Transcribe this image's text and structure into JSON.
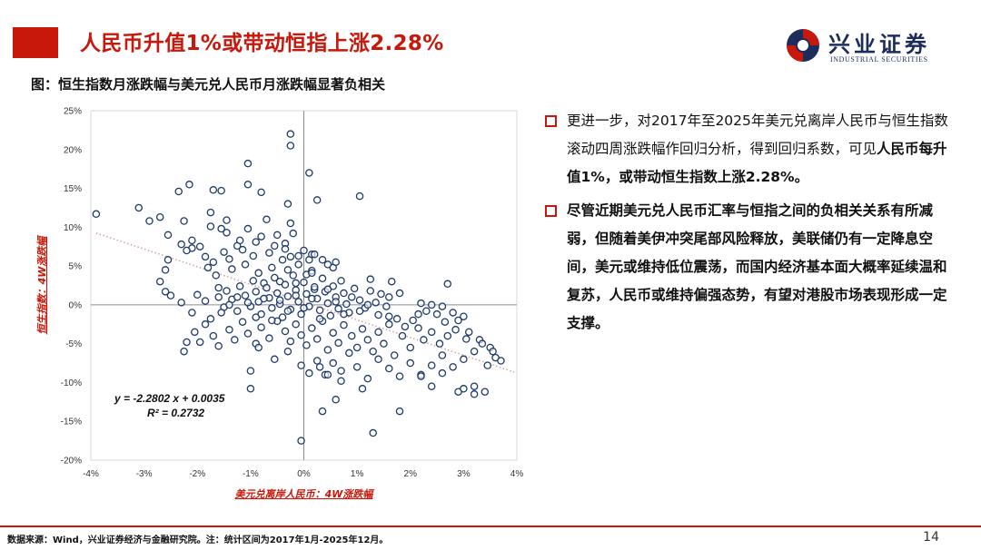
{
  "header": {
    "title": "人民币升值1%或带动恒指上涨2.28%"
  },
  "logo": {
    "cn": "兴业证券",
    "en": "INDUSTRIAL SECURITIES",
    "icon": "industrial-securities-logo"
  },
  "figure": {
    "caption": "图：恒生指数月涨跌幅与美元兑人民币月涨跌幅显著负相关"
  },
  "bullets": [
    {
      "parts": [
        {
          "text": "更进一步，对2017年至2025年美元兑离岸人民币与恒生指数滚动四周涨跌幅作回归分析，得到回归系数，可见",
          "bold": false
        },
        {
          "text": "人民币每升值1%，或带动恒生指数上涨2.28%。",
          "bold": true
        }
      ]
    },
    {
      "parts": [
        {
          "text": "尽管近期美元兑人民币汇率与恒指之间的负相关关系有所减弱，但随着美伊冲突尾部风险释放，美联储仍有一定降息空间，美元或维持低位震荡，而国内经济基本面大概率延续温和复苏，人民币或维持偏强态势，有望对港股市场表现形成一定支撑。",
          "bold": true
        }
      ]
    }
  ],
  "footer": {
    "source": "数据来源：Wind，兴业证券经济与金融研究院。注：统计区间为2017年1月-2025年12月。",
    "page": "14"
  },
  "colors": {
    "accent": "#c8180b",
    "marker": "#1f3a6e",
    "trend": "#d9a59c"
  },
  "chart_data": {
    "type": "scatter",
    "xlabel": "美元兑离岸人民币：4W涨跌幅",
    "ylabel": "恒生指数：4W涨跌幅",
    "xlim": [
      -0.04,
      0.04
    ],
    "ylim": [
      -0.2,
      0.25
    ],
    "x_ticks": [
      -0.04,
      -0.03,
      -0.02,
      -0.01,
      0,
      0.01,
      0.02,
      0.03,
      0.04
    ],
    "x_tick_labels": [
      "-4%",
      "-3%",
      "-2%",
      "-1%",
      "0%",
      "1%",
      "2%",
      "3%",
      "4%"
    ],
    "y_ticks": [
      -0.2,
      -0.15,
      -0.1,
      -0.05,
      0,
      0.05,
      0.1,
      0.15,
      0.2,
      0.25
    ],
    "y_tick_labels": [
      "-20%",
      "-15%",
      "-10%",
      "-5%",
      "0%",
      "5%",
      "10%",
      "15%",
      "20%",
      "25%"
    ],
    "trendline": {
      "slope": -2.2802,
      "intercept": 0.0035,
      "style": "dotted"
    },
    "equation": "y = -2.2802 x + 0.0035",
    "r2": "R² = 0.2732",
    "points": [
      [
        -0.039,
        0.117
      ],
      [
        -0.031,
        0.125
      ],
      [
        -0.029,
        0.108
      ],
      [
        -0.027,
        0.113
      ],
      [
        -0.0255,
        0.09
      ],
      [
        -0.0235,
        0.146
      ],
      [
        -0.0225,
        0.108
      ],
      [
        -0.0215,
        0.155
      ],
      [
        -0.021,
        0.073
      ],
      [
        -0.0175,
        0.119
      ],
      [
        -0.017,
        0.148
      ],
      [
        -0.0155,
        0.147
      ],
      [
        -0.0145,
        0.109
      ],
      [
        -0.0105,
        0.155
      ],
      [
        -0.0105,
        0.182
      ],
      [
        -0.008,
        0.145
      ],
      [
        -0.007,
        0.11
      ],
      [
        -0.003,
        0.13
      ],
      [
        -0.0025,
        0.105
      ],
      [
        -0.002,
        0.092
      ],
      [
        -0.0255,
        0.058
      ],
      [
        -0.026,
        0.045
      ],
      [
        -0.027,
        0.03
      ],
      [
        -0.026,
        0.017
      ],
      [
        -0.025,
        0.012
      ],
      [
        -0.023,
        0.078
      ],
      [
        -0.022,
        0.07
      ],
      [
        -0.021,
        0.083
      ],
      [
        -0.0195,
        0.075
      ],
      [
        -0.0185,
        0.062
      ],
      [
        -0.018,
        0.048
      ],
      [
        -0.017,
        0.055
      ],
      [
        -0.0165,
        0.038
      ],
      [
        -0.016,
        0.022
      ],
      [
        -0.015,
        0.068
      ],
      [
        -0.014,
        0.059
      ],
      [
        -0.0135,
        0.046
      ],
      [
        -0.0125,
        0.076
      ],
      [
        -0.0115,
        0.071
      ],
      [
        -0.011,
        0.052
      ],
      [
        -0.0095,
        0.063
      ],
      [
        -0.0085,
        0.041
      ],
      [
        -0.008,
        0.088
      ],
      [
        -0.0075,
        0.028
      ],
      [
        -0.0065,
        0.067
      ],
      [
        -0.006,
        0.048
      ],
      [
        -0.0055,
        0.076
      ],
      [
        -0.0045,
        0.03
      ],
      [
        -0.004,
        0.058
      ],
      [
        -0.0035,
        0.079
      ],
      [
        -0.003,
        0.045
      ],
      [
        -0.0025,
        0.062
      ],
      [
        -0.0015,
        0.028
      ],
      [
        -0.001,
        0.052
      ],
      [
        0.0,
        0.07
      ],
      [
        0.0005,
        0.039
      ],
      [
        0.001,
        0.058
      ],
      [
        0.0015,
        0.065
      ],
      [
        0.002,
        0.02
      ],
      [
        -0.016,
        0.01
      ],
      [
        -0.015,
        -0.003
      ],
      [
        -0.0145,
        0.018
      ],
      [
        -0.0135,
        0.007
      ],
      [
        -0.0125,
        -0.008
      ],
      [
        -0.012,
        0.024
      ],
      [
        -0.011,
        0.012
      ],
      [
        -0.01,
        -0.002
      ],
      [
        -0.0095,
        0.031
      ],
      [
        -0.009,
        0.017
      ],
      [
        -0.0085,
        0.004
      ],
      [
        -0.008,
        -0.012
      ],
      [
        -0.007,
        0.022
      ],
      [
        -0.0065,
        0.009
      ],
      [
        -0.006,
        -0.004
      ],
      [
        -0.0055,
        0.035
      ],
      [
        -0.005,
        0.015
      ],
      [
        -0.0045,
        0.001
      ],
      [
        -0.004,
        -0.016
      ],
      [
        -0.0035,
        0.026
      ],
      [
        -0.003,
        0.011
      ],
      [
        -0.0025,
        -0.006
      ],
      [
        -0.002,
        0.038
      ],
      [
        -0.0015,
        0.019
      ],
      [
        -0.001,
        0.004
      ],
      [
        -0.0005,
        -0.012
      ],
      [
        0.0,
        0.029
      ],
      [
        0.0005,
        0.014
      ],
      [
        0.001,
        -0.002
      ],
      [
        0.0015,
        0.044
      ],
      [
        0.002,
        0.023
      ],
      [
        0.0025,
        0.008
      ],
      [
        0.003,
        -0.007
      ],
      [
        0.0035,
        0.034
      ],
      [
        0.004,
        0.017
      ],
      [
        0.0045,
        0.002
      ],
      [
        0.005,
        -0.014
      ],
      [
        0.0055,
        0.024
      ],
      [
        0.006,
        0.01
      ],
      [
        0.0065,
        -0.005
      ],
      [
        0.007,
        0.031
      ],
      [
        0.0075,
        0.015
      ],
      [
        0.008,
        0.001
      ],
      [
        0.0085,
        -0.01
      ],
      [
        0.0095,
        0.021
      ],
      [
        0.0105,
        0.006
      ],
      [
        0.0115,
        -0.004
      ],
      [
        0.0125,
        0.018
      ],
      [
        0.0135,
        0.003
      ],
      [
        0.0145,
        0.014
      ],
      [
        0.0155,
        -0.002
      ],
      [
        0.0165,
        0.03
      ],
      [
        -0.021,
        -0.01
      ],
      [
        -0.022,
        -0.048
      ],
      [
        -0.0225,
        -0.06
      ],
      [
        -0.0205,
        -0.035
      ],
      [
        -0.0195,
        -0.048
      ],
      [
        -0.0185,
        -0.025
      ],
      [
        -0.017,
        -0.04
      ],
      [
        -0.016,
        -0.053
      ],
      [
        -0.014,
        -0.032
      ],
      [
        -0.013,
        -0.045
      ],
      [
        -0.0115,
        -0.022
      ],
      [
        -0.0105,
        -0.037
      ],
      [
        -0.009,
        -0.05
      ],
      [
        -0.008,
        -0.029
      ],
      [
        -0.0065,
        -0.043
      ],
      [
        -0.005,
        -0.021
      ],
      [
        -0.0035,
        -0.034
      ],
      [
        -0.0025,
        -0.047
      ],
      [
        -0.0015,
        -0.025
      ],
      [
        -0.0005,
        -0.039
      ],
      [
        0.0005,
        -0.052
      ],
      [
        0.0015,
        -0.03
      ],
      [
        0.0025,
        -0.044
      ],
      [
        0.0035,
        -0.021
      ],
      [
        0.0045,
        -0.058
      ],
      [
        0.0055,
        -0.036
      ],
      [
        0.0065,
        -0.049
      ],
      [
        0.0075,
        -0.026
      ],
      [
        0.009,
        -0.04
      ],
      [
        0.01,
        -0.055
      ],
      [
        0.011,
        -0.031
      ],
      [
        0.012,
        -0.045
      ],
      [
        0.013,
        -0.06
      ],
      [
        0.014,
        -0.035
      ],
      [
        0.015,
        -0.05
      ],
      [
        0.016,
        -0.025
      ],
      [
        0.017,
        -0.065
      ],
      [
        0.0185,
        -0.04
      ],
      [
        0.02,
        -0.055
      ],
      [
        0.0215,
        -0.03
      ],
      [
        0.0225,
        -0.045
      ],
      [
        0.024,
        -0.035
      ],
      [
        0.0255,
        -0.05
      ],
      [
        0.027,
        -0.04
      ],
      [
        0.029,
        -0.02
      ],
      [
        0.031,
        -0.035
      ],
      [
        0.033,
        -0.045
      ],
      [
        0.035,
        -0.055
      ],
      [
        0.036,
        -0.068
      ],
      [
        0.0345,
        -0.078
      ],
      [
        0.032,
        -0.06
      ],
      [
        0.03,
        -0.07
      ],
      [
        0.028,
        -0.08
      ],
      [
        0.026,
        -0.065
      ],
      [
        0.024,
        -0.078
      ],
      [
        0.022,
        -0.09
      ],
      [
        0.02,
        -0.075
      ],
      [
        0.018,
        -0.092
      ],
      [
        0.016,
        -0.082
      ],
      [
        0.014,
        -0.07
      ],
      [
        0.012,
        -0.095
      ],
      [
        0.01,
        -0.08
      ],
      [
        0.0085,
        -0.062
      ],
      [
        0.007,
        -0.085
      ],
      [
        0.0055,
        -0.075
      ],
      [
        0.004,
        -0.09
      ],
      [
        0.0025,
        -0.072
      ],
      [
        0.001,
        -0.088
      ],
      [
        -0.0005,
        -0.078
      ],
      [
        -0.003,
        -0.06
      ],
      [
        -0.0055,
        -0.07
      ],
      [
        -0.0085,
        -0.055
      ],
      [
        -0.01,
        -0.108
      ],
      [
        -0.01,
        -0.085
      ],
      [
        -0.0005,
        -0.175
      ],
      [
        0.0035,
        -0.137
      ],
      [
        0.006,
        -0.122
      ],
      [
        0.013,
        -0.165
      ],
      [
        0.018,
        -0.137
      ],
      [
        0.024,
        -0.105
      ],
      [
        0.029,
        -0.112
      ],
      [
        0.032,
        -0.105
      ],
      [
        0.034,
        -0.112
      ],
      [
        0.032,
        -0.115
      ],
      [
        0.03,
        -0.108
      ],
      [
        0.026,
        -0.088
      ],
      [
        0.022,
        -0.092
      ],
      [
        0.011,
        -0.108
      ],
      [
        0.007,
        -0.098
      ],
      [
        0.0045,
        -0.09
      ],
      [
        0.003,
        -0.08
      ],
      [
        -0.0025,
        0.22
      ],
      [
        -0.0025,
        0.205
      ],
      [
        0.001,
        0.17
      ],
      [
        0.0025,
        0.135
      ],
      [
        0.0105,
        0.14
      ],
      [
        0.022,
        0.002
      ],
      [
        0.024,
        0.0
      ],
      [
        0.026,
        -0.002
      ],
      [
        0.028,
        -0.01
      ],
      [
        0.03,
        -0.015
      ],
      [
        0.027,
        0.027
      ],
      [
        0.018,
        0.015
      ],
      [
        0.016,
        0.01
      ],
      [
        0.0125,
        0.033
      ],
      [
        0.0055,
        0.048
      ],
      [
        0.0045,
        0.052
      ],
      [
        0.0035,
        0.058
      ],
      [
        0.002,
        0.065
      ],
      [
        0.0015,
        0.041
      ],
      [
        0.006,
        0.055
      ],
      [
        -0.0175,
        0.101
      ],
      [
        -0.0155,
        0.098
      ],
      [
        -0.0145,
        0.093
      ],
      [
        -0.012,
        0.083
      ],
      [
        -0.0105,
        0.098
      ],
      [
        -0.009,
        0.081
      ],
      [
        -0.005,
        0.09
      ],
      [
        -0.0035,
        0.072
      ],
      [
        -0.001,
        0.063
      ],
      [
        -0.023,
        0.003
      ],
      [
        -0.02,
        0.013
      ],
      [
        -0.0185,
        0.005
      ],
      [
        -0.0175,
        -0.018
      ],
      [
        -0.0155,
        -0.01
      ],
      [
        -0.014,
        0.0
      ],
      [
        -0.0125,
        0.01
      ],
      [
        -0.0105,
        0.003
      ],
      [
        -0.009,
        -0.016
      ],
      [
        -0.0075,
        0.008
      ],
      [
        -0.006,
        -0.02
      ],
      [
        -0.0045,
        0.006
      ],
      [
        -0.003,
        -0.008
      ],
      [
        -0.0015,
        0.012
      ],
      [
        0.0,
        -0.004
      ],
      [
        0.0015,
        0.008
      ],
      [
        0.003,
        -0.018
      ],
      [
        0.0045,
        0.02
      ],
      [
        0.006,
        0.004
      ],
      [
        0.0075,
        -0.012
      ],
      [
        0.009,
        0.01
      ],
      [
        0.0105,
        -0.008
      ],
      [
        0.012,
        0.0
      ],
      [
        0.014,
        -0.013
      ],
      [
        0.016,
        -0.015
      ],
      [
        0.0175,
        -0.018
      ],
      [
        0.019,
        -0.028
      ],
      [
        0.0205,
        -0.02
      ],
      [
        0.0215,
        -0.012
      ],
      [
        0.023,
        -0.008
      ],
      [
        0.025,
        -0.012
      ],
      [
        0.0265,
        -0.022
      ],
      [
        0.0285,
        -0.032
      ],
      [
        0.0305,
        -0.044
      ],
      [
        0.0335,
        -0.05
      ],
      [
        0.037,
        -0.072
      ],
      [
        0.0355,
        -0.06
      ]
    ]
  }
}
